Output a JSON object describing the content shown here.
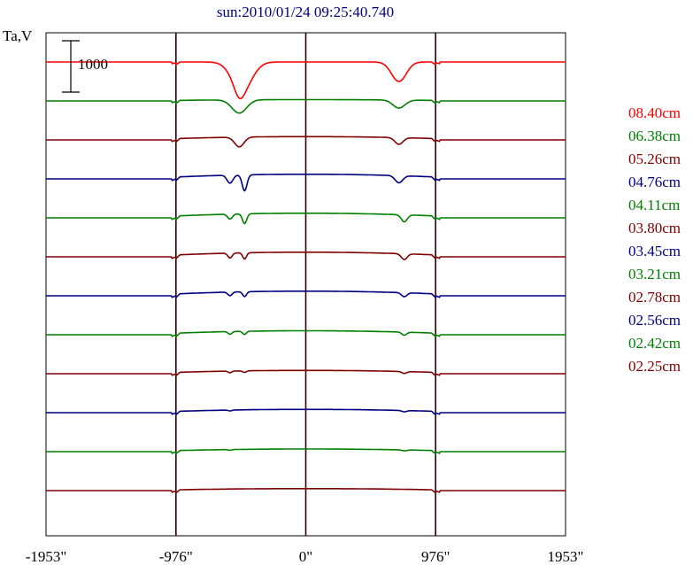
{
  "chart_data": {
    "type": "line",
    "title": "sun:2010/01/24 09:25:40.740",
    "ylabel": "Ta,V",
    "scale_bar_label": "1000",
    "x_ticks": [
      {
        "value": -1953,
        "label": "-1953\""
      },
      {
        "value": -976,
        "label": "-976\""
      },
      {
        "value": 0,
        "label": "0\""
      },
      {
        "value": 976,
        "label": "976\""
      },
      {
        "value": 1953,
        "label": "1953\""
      }
    ],
    "xlim": [
      -1953,
      1953
    ],
    "vertical_lines_at": [
      -976,
      0,
      976
    ],
    "series": [
      {
        "name": "08.40cm",
        "color": "#ff0000"
      },
      {
        "name": "06.38cm",
        "color": "#008000"
      },
      {
        "name": "05.26cm",
        "color": "#800000"
      },
      {
        "name": "04.76cm",
        "color": "#000080"
      },
      {
        "name": "04.11cm",
        "color": "#008000"
      },
      {
        "name": "03.80cm",
        "color": "#800000"
      },
      {
        "name": "03.45cm",
        "color": "#000080"
      },
      {
        "name": "03.21cm",
        "color": "#008000"
      },
      {
        "name": "02.78cm",
        "color": "#800000"
      },
      {
        "name": "02.56cm",
        "color": "#000080"
      },
      {
        "name": "02.42cm",
        "color": "#008000"
      },
      {
        "name": "02.25cm",
        "color": "#800000"
      }
    ],
    "profiles": [
      {
        "dips": [
          [
            -480,
            320,
            75
          ],
          [
            -500,
            100,
            35
          ],
          [
            700,
            220,
            55
          ]
        ],
        "disk": 0
      },
      {
        "dips": [
          [
            -500,
            150,
            55
          ],
          [
            700,
            90,
            45
          ]
        ],
        "disk": 10
      },
      {
        "dips": [
          [
            -500,
            110,
            35
          ],
          [
            700,
            75,
            30
          ]
        ],
        "disk": 25
      },
      {
        "dips": [
          [
            -570,
            90,
            22
          ],
          [
            -460,
            180,
            18
          ],
          [
            700,
            80,
            28
          ]
        ],
        "disk": 35
      },
      {
        "dips": [
          [
            -570,
            55,
            18
          ],
          [
            -460,
            110,
            16
          ],
          [
            740,
            80,
            22
          ]
        ],
        "disk": 35
      },
      {
        "dips": [
          [
            -570,
            55,
            16
          ],
          [
            -460,
            70,
            14
          ],
          [
            740,
            65,
            22
          ]
        ],
        "disk": 35
      },
      {
        "dips": [
          [
            -570,
            40,
            16
          ],
          [
            -460,
            55,
            14
          ],
          [
            740,
            45,
            20
          ]
        ],
        "disk": 35
      },
      {
        "dips": [
          [
            -570,
            30,
            14
          ],
          [
            -460,
            35,
            14
          ],
          [
            740,
            35,
            18
          ]
        ],
        "disk": 30
      },
      {
        "dips": [
          [
            -570,
            18,
            14
          ],
          [
            -460,
            18,
            14
          ],
          [
            740,
            22,
            18
          ]
        ],
        "disk": 25
      },
      {
        "dips": [
          [
            -570,
            10,
            14
          ],
          [
            740,
            15,
            18
          ]
        ],
        "disk": 25
      },
      {
        "dips": [
          [
            -570,
            8,
            14
          ],
          [
            740,
            10,
            18
          ]
        ],
        "disk": 20
      },
      {
        "dips": [],
        "disk": 15
      }
    ]
  }
}
